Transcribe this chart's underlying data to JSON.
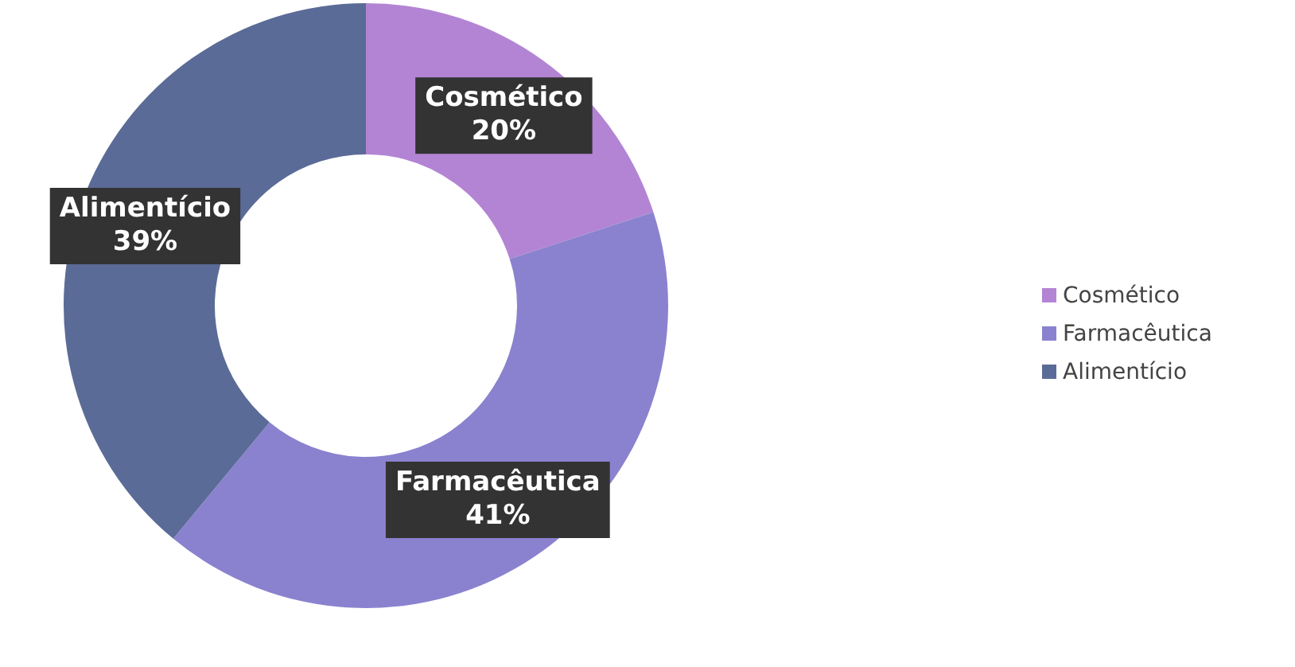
{
  "chart_data": {
    "type": "donut",
    "categories": [
      "Cosmético",
      "Farmacêutica",
      "Alimentício"
    ],
    "values": [
      20,
      41,
      39
    ],
    "colors": [
      "#b384d4",
      "#8a82cf",
      "#5b6b97"
    ],
    "value_labels": [
      "20%",
      "41%",
      "39%"
    ],
    "legend": "right"
  }
}
